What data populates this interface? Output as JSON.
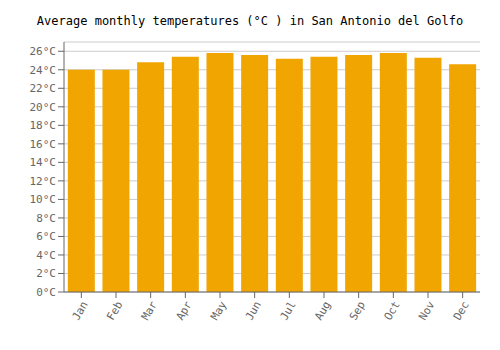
{
  "chart_data": {
    "type": "bar",
    "title": "Average monthly temperatures (°C ) in San Antonio del Golfo",
    "categories": [
      "Jan",
      "Feb",
      "Mar",
      "Apr",
      "May",
      "Jun",
      "Jul",
      "Aug",
      "Sep",
      "Oct",
      "Nov",
      "Dec"
    ],
    "values": [
      24.0,
      24.0,
      24.8,
      25.4,
      25.8,
      25.6,
      25.2,
      25.4,
      25.6,
      25.8,
      25.3,
      24.6
    ],
    "color": "#F0A500",
    "ylim": [
      0,
      27
    ],
    "yticks": [
      {
        "value": 0,
        "label": "0°C"
      },
      {
        "value": 2,
        "label": "2°C"
      },
      {
        "value": 4,
        "label": "4°C"
      },
      {
        "value": 6,
        "label": "6°C"
      },
      {
        "value": 8,
        "label": "8°C"
      },
      {
        "value": 10,
        "label": "10°C"
      },
      {
        "value": 12,
        "label": "12°C"
      },
      {
        "value": 14,
        "label": "14°C"
      },
      {
        "value": 16,
        "label": "16°C"
      },
      {
        "value": 18,
        "label": "18°C"
      },
      {
        "value": 20,
        "label": "20°C"
      },
      {
        "value": 22,
        "label": "22°C"
      },
      {
        "value": 24,
        "label": "24°C"
      },
      {
        "value": 26,
        "label": "26°C"
      }
    ],
    "grid": true
  }
}
